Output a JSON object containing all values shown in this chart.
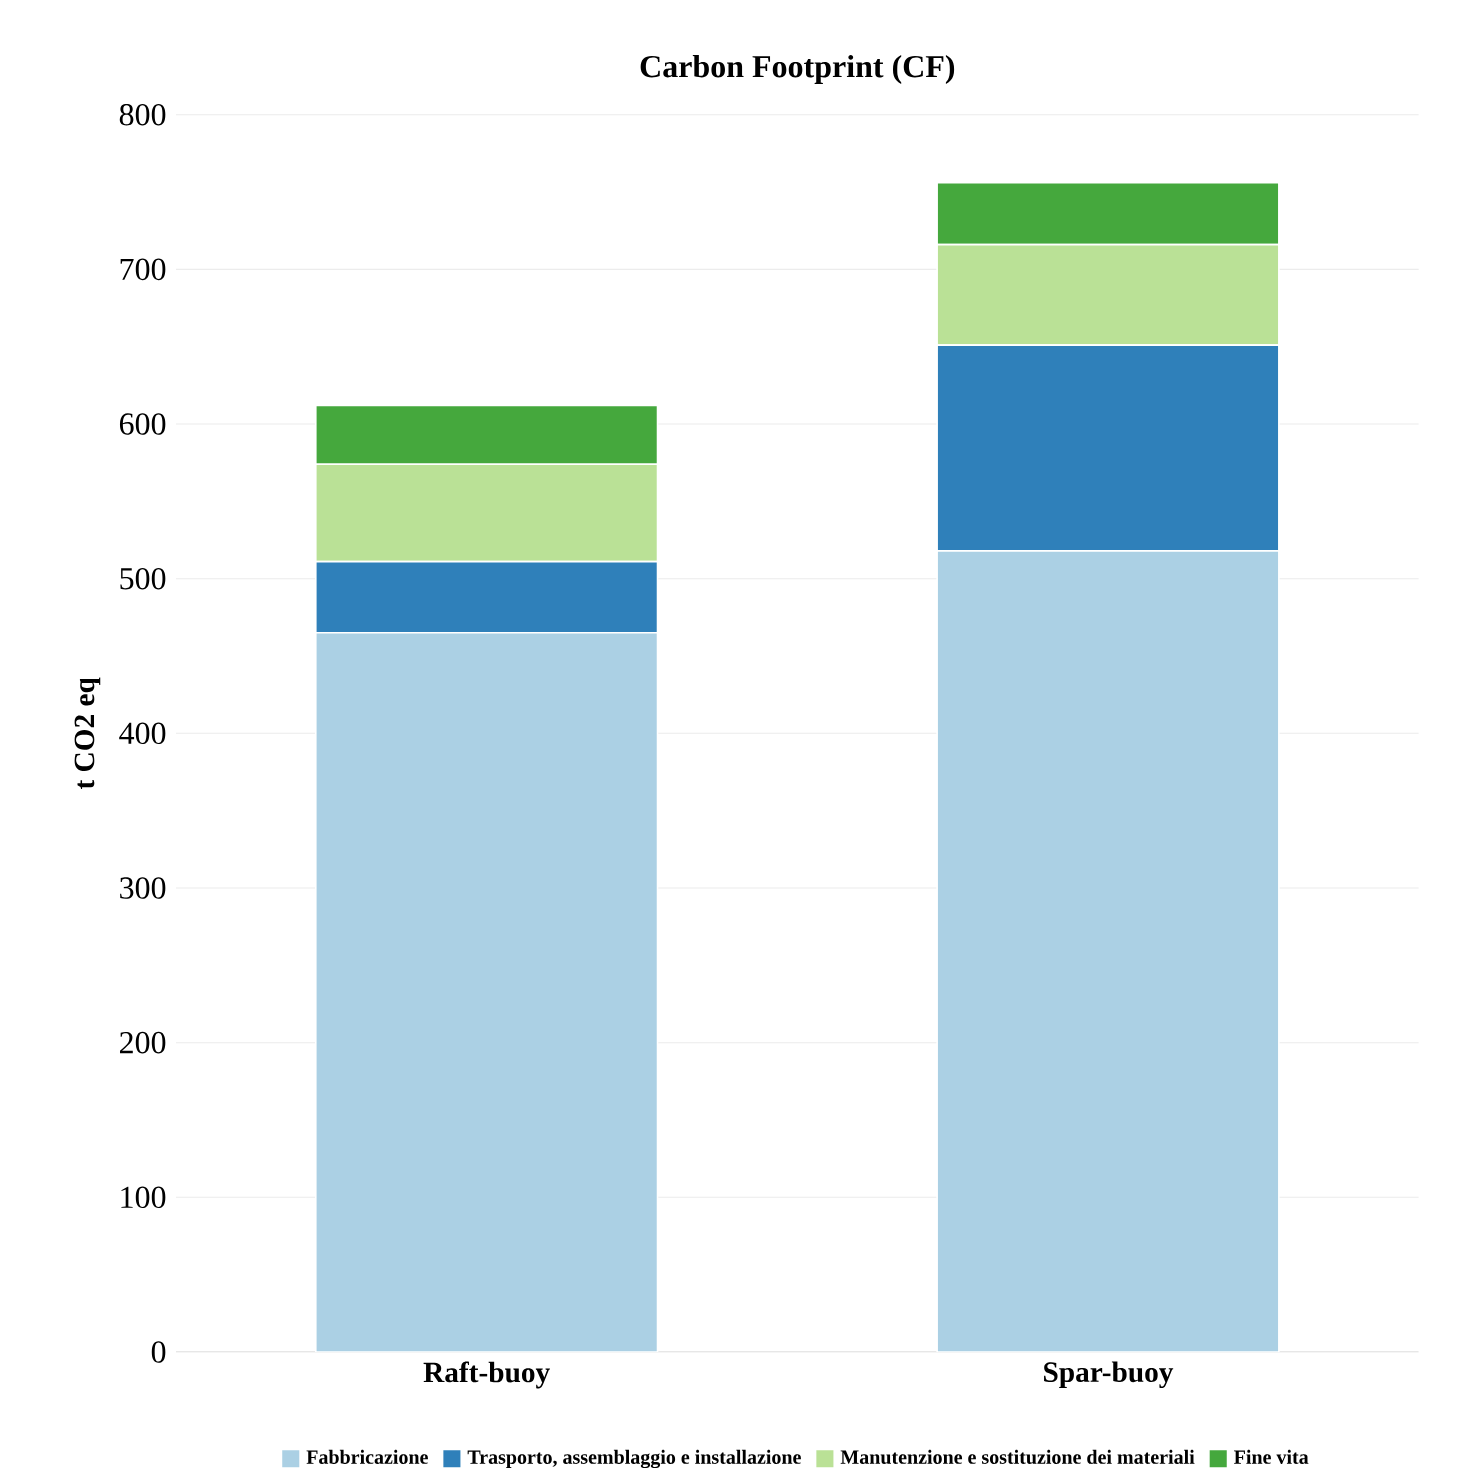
{
  "chart_data": {
    "type": "bar",
    "title": "Carbon Footprint (CF)",
    "ylabel": "t CO2 eq",
    "categories": [
      "Raft-buoy",
      "Spar-buoy"
    ],
    "series": [
      {
        "name": "Fabbricazione",
        "color": "#abd0e4",
        "values": [
          465,
          518
        ]
      },
      {
        "name": "Trasporto, assemblaggio e installazione",
        "color": "#2f80ba",
        "values": [
          46,
          133
        ]
      },
      {
        "name": "Manutenzione e sostituzione dei materiali",
        "color": "#bae196",
        "values": [
          63,
          65
        ]
      },
      {
        "name": "Fine vita",
        "color": "#45a83d",
        "values": [
          38,
          40
        ]
      }
    ],
    "stacked": true,
    "ylim": [
      0,
      800
    ],
    "yticks": [
      0,
      100,
      200,
      300,
      400,
      500,
      600,
      700,
      800
    ],
    "grid": "y",
    "legend": "bottom"
  }
}
